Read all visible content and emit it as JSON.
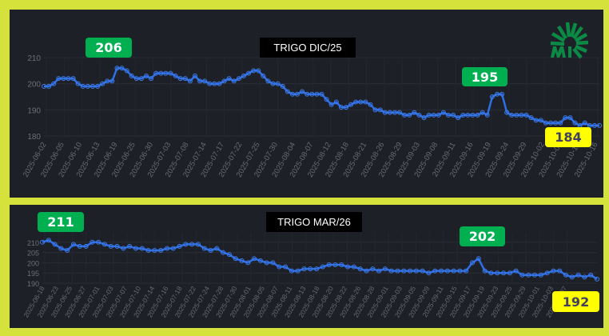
{
  "colors": {
    "background": "#d6e23c",
    "panel": "#1e2028",
    "line": "#2f6fe6",
    "max_badge": "#00b050",
    "last_badge": "#ffff00"
  },
  "logo": {
    "icon": "green-sunburst-logo"
  },
  "chart_data": [
    {
      "type": "line",
      "title": "TRIGO DIC/25",
      "ylim": [
        180,
        210
      ],
      "yticks": [
        180,
        190,
        200,
        210
      ],
      "grid": true,
      "x_tick_labels": [
        "2025-06-02",
        "2025-06-05",
        "2025-06-10",
        "2025-06-13",
        "2025-06-19",
        "2025-06-25",
        "2025-06-30",
        "2025-07-03",
        "2025-07-08",
        "2025-07-14",
        "2025-07-17",
        "2025-07-22",
        "2025-07-25",
        "2025-07-30",
        "2025-08-04",
        "2025-08-07",
        "2025-08-12",
        "2025-08-18",
        "2025-08-21",
        "2025-08-26",
        "2025-08-29",
        "2025-09-03",
        "2025-09-08",
        "2025-09-11",
        "2025-09-16",
        "2025-09-19",
        "2025-09-24",
        "2025-09-29",
        "2025-10-02",
        "2025-10-07",
        "2025-10-13",
        "2025-10-16"
      ],
      "values": [
        199,
        199,
        200,
        202,
        202,
        202,
        202,
        200,
        199,
        199,
        199,
        199,
        200,
        201,
        201,
        206,
        206,
        205,
        203,
        202,
        202,
        203,
        202,
        204,
        204,
        204,
        204,
        203,
        202,
        202,
        201,
        203,
        201,
        201,
        200,
        200,
        200,
        201,
        202,
        201,
        202,
        203,
        204,
        205,
        205,
        203,
        201,
        200,
        200,
        199,
        197,
        196,
        196,
        197,
        196,
        196,
        196,
        196,
        194,
        192,
        193,
        191,
        191,
        192,
        193,
        193,
        193,
        192,
        190,
        190,
        189,
        189,
        189,
        189,
        188,
        188,
        189,
        188,
        187,
        188,
        188,
        188,
        189,
        188,
        188,
        187,
        188,
        188,
        188,
        188,
        189,
        188,
        195,
        196,
        196,
        189,
        188,
        188,
        188,
        188,
        187,
        186,
        186,
        185,
        185,
        185,
        185,
        187,
        187,
        185,
        184,
        185,
        184,
        184,
        184
      ],
      "max_label": "206",
      "peak_label": "195",
      "last_label": "184"
    },
    {
      "type": "line",
      "title": "TRIGO MAR/26",
      "ylim": [
        190,
        215
      ],
      "yticks": [
        190,
        195,
        200,
        205,
        210
      ],
      "grid": true,
      "x_tick_labels": [
        "2025-06-18",
        "2025-06-23",
        "2025-06-25",
        "2025-06-27",
        "2025-07-01",
        "2025-07-03",
        "2025-07-07",
        "2025-07-10",
        "2025-07-14",
        "2025-07-16",
        "2025-07-18",
        "2025-07-22",
        "2025-07-24",
        "2025-07-28",
        "2025-07-30",
        "2025-08-01",
        "2025-08-05",
        "2025-08-07",
        "2025-08-11",
        "2025-08-13",
        "2025-08-18",
        "2025-08-20",
        "2025-08-22",
        "2025-08-26",
        "2025-08-28",
        "2025-09-01",
        "2025-09-03",
        "2025-09-05",
        "2025-09-09",
        "2025-09-11",
        "2025-09-15",
        "2025-09-17",
        "2025-09-19",
        "2025-09-23",
        "2025-09-25",
        "2025-09-29",
        "2025-10-01",
        "2025-10-03",
        "2025-10-07"
      ],
      "values": [
        210,
        211,
        209,
        207,
        206,
        209,
        208,
        208,
        210,
        210,
        209,
        208,
        208,
        207,
        208,
        207,
        207,
        206,
        206,
        206,
        207,
        207,
        208,
        209,
        209,
        209,
        207,
        206,
        207,
        205,
        204,
        202,
        201,
        200,
        202,
        201,
        200,
        200,
        198,
        198,
        196,
        196,
        197,
        197,
        197,
        198,
        199,
        199,
        199,
        198,
        198,
        197,
        196,
        197,
        196,
        197,
        196,
        196,
        196,
        196,
        196,
        196,
        195,
        196,
        196,
        196,
        196,
        196,
        196,
        200,
        202,
        196,
        195,
        195,
        195,
        195,
        196,
        194,
        194,
        194,
        194,
        195,
        196,
        196,
        194,
        193,
        194,
        193,
        194,
        192
      ],
      "max_label": "211",
      "peak_label": "202",
      "last_label": "192"
    }
  ]
}
